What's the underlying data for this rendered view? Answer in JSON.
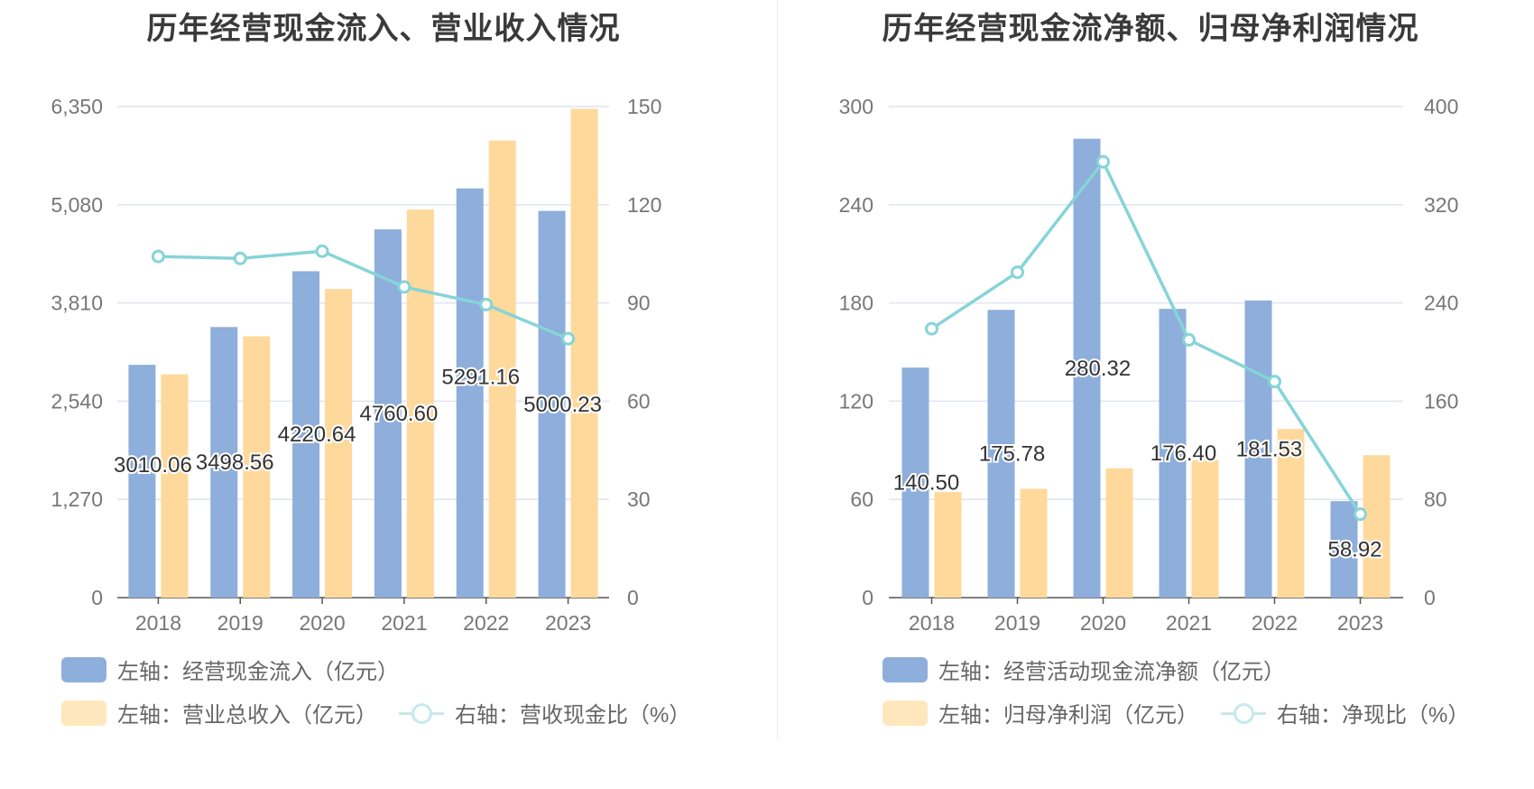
{
  "chart_data": [
    {
      "type": "bar",
      "title": "历年经营现金流入、营业收入情况",
      "categories": [
        "2018",
        "2019",
        "2020",
        "2021",
        "2022",
        "2023"
      ],
      "left_axis": {
        "ticks": [
          "0",
          "1,270",
          "2,540",
          "3,810",
          "5,080",
          "6,350"
        ],
        "ylim": [
          0,
          6350
        ]
      },
      "right_axis": {
        "ticks": [
          "0",
          "30",
          "60",
          "90",
          "120",
          "150"
        ],
        "ylim": [
          0,
          150
        ]
      },
      "series": [
        {
          "name": "左轴：经营现金流入（亿元）",
          "axis": "left",
          "kind": "bar",
          "color": "#8eaedb",
          "values": [
            3010.06,
            3498.56,
            4220.64,
            4760.6,
            5291.16,
            5000.23
          ],
          "labels": [
            "3010.06",
            "3498.56",
            "4220.64",
            "4760.60",
            "5291.16",
            "5000.23"
          ]
        },
        {
          "name": "左轴：营业总收入（亿元）",
          "axis": "left",
          "kind": "bar",
          "color": "#ffd99b",
          "values": [
            2887,
            3378,
            3991,
            5018,
            5910,
            6320
          ]
        },
        {
          "name": "右轴：营收现金比（%）",
          "axis": "right",
          "kind": "line",
          "color": "#86d4d8",
          "values": [
            104.2,
            103.6,
            105.8,
            94.9,
            89.5,
            79.1
          ]
        }
      ],
      "legend": "bottom-left",
      "grid": true
    },
    {
      "type": "bar",
      "title": "历年经营现金流净额、归母净利润情况",
      "categories": [
        "2018",
        "2019",
        "2020",
        "2021",
        "2022",
        "2023"
      ],
      "left_axis": {
        "ticks": [
          "0",
          "60",
          "120",
          "180",
          "240",
          "300"
        ],
        "ylim": [
          0,
          300
        ]
      },
      "right_axis": {
        "ticks": [
          "0",
          "80",
          "160",
          "240",
          "320",
          "400"
        ],
        "ylim": [
          0,
          400
        ]
      },
      "series": [
        {
          "name": "左轴：经营活动现金流净额（亿元）",
          "axis": "left",
          "kind": "bar",
          "color": "#8eaedb",
          "values": [
            140.5,
            175.78,
            280.32,
            176.4,
            181.53,
            58.92
          ],
          "labels": [
            "140.50",
            "175.78",
            "280.32",
            "176.40",
            "181.53",
            "58.92"
          ]
        },
        {
          "name": "左轴：归母净利润（亿元）",
          "axis": "left",
          "kind": "bar",
          "color": "#ffd99b",
          "values": [
            64.5,
            66.5,
            79.0,
            84.0,
            103.0,
            87.0
          ]
        },
        {
          "name": "右轴：净现比（%）",
          "axis": "right",
          "kind": "line",
          "color": "#86d4d8",
          "values": [
            219,
            265,
            355,
            210,
            176,
            68
          ]
        }
      ],
      "legend": "bottom-left",
      "grid": true
    }
  ]
}
